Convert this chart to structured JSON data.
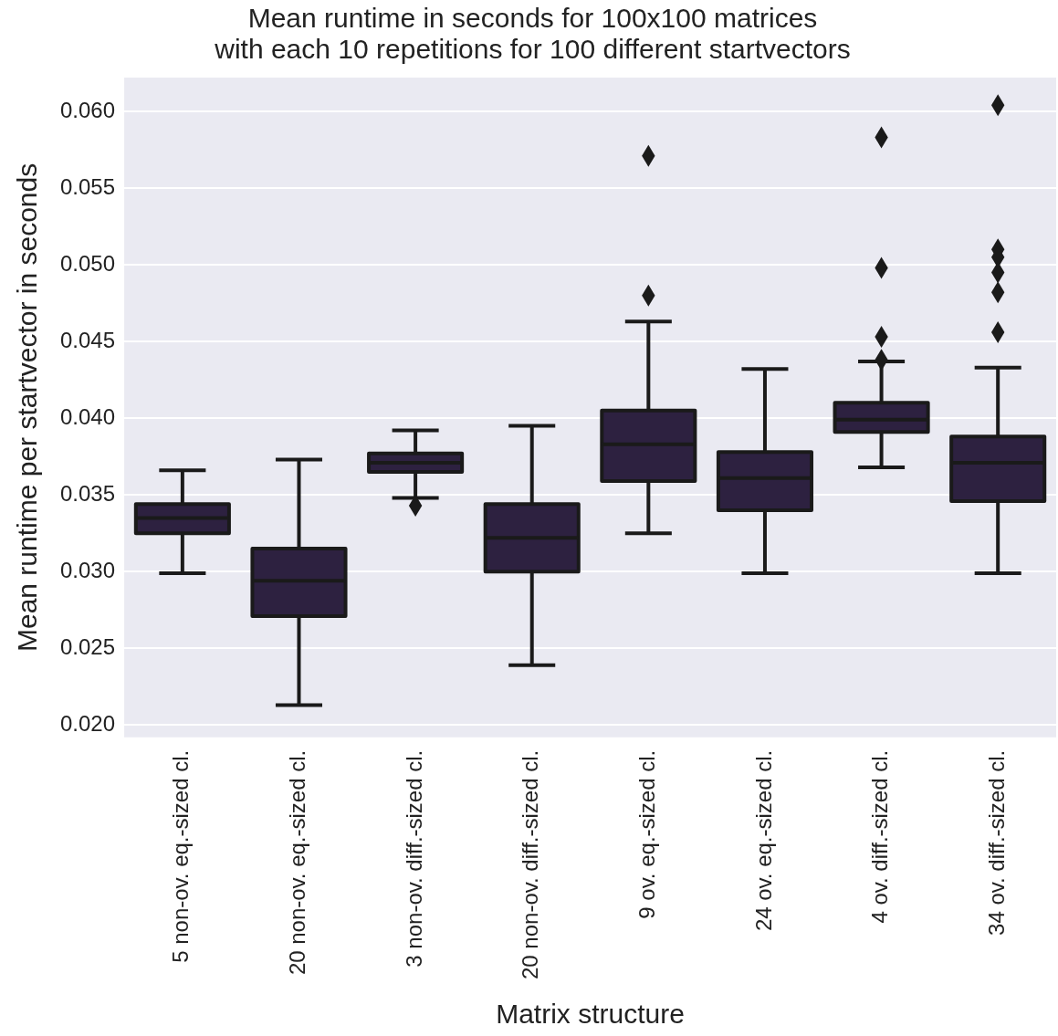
{
  "chart_data": {
    "type": "box",
    "title": "Mean runtime in seconds for 100x100 matrices\nwith each 10 repetitions for 100 different startvectors",
    "xlabel": "Matrix structure",
    "ylabel": "Mean runtime per startvector in seconds",
    "categories": [
      "5 non-ov. eq.-sized cl.",
      "20 non-ov. eq.-sized cl.",
      "3 non-ov. diff.-sized cl.",
      "20 non-ov. diff.-sized cl.",
      "9 ov. eq.-sized cl.",
      "24 ov. eq.-sized cl.",
      "4 ov. diff.-sized cl.",
      "34 ov. diff.-sized cl."
    ],
    "color": "#2d2140",
    "boxes": [
      {
        "low": 0.0299,
        "q1": 0.0325,
        "median": 0.0335,
        "q3": 0.0344,
        "high": 0.0366
      },
      {
        "low": 0.0213,
        "q1": 0.0271,
        "median": 0.0294,
        "q3": 0.0315,
        "high": 0.0373
      },
      {
        "low": 0.0348,
        "q1": 0.0365,
        "median": 0.0371,
        "q3": 0.0377,
        "high": 0.0392,
        "outliers": [
          0.0343
        ]
      },
      {
        "low": 0.0239,
        "q1": 0.03,
        "median": 0.0322,
        "q3": 0.0344,
        "high": 0.0395
      },
      {
        "low": 0.0325,
        "q1": 0.0359,
        "median": 0.0383,
        "q3": 0.0405,
        "high": 0.0463,
        "outliers": [
          0.0571,
          0.048
        ]
      },
      {
        "low": 0.0299,
        "q1": 0.034,
        "median": 0.0361,
        "q3": 0.0378,
        "high": 0.0432
      },
      {
        "low": 0.0368,
        "q1": 0.0391,
        "median": 0.0399,
        "q3": 0.041,
        "high": 0.0437,
        "outliers": [
          0.0583,
          0.0498,
          0.0453,
          0.0438
        ]
      },
      {
        "low": 0.0299,
        "q1": 0.0346,
        "median": 0.0371,
        "q3": 0.0388,
        "high": 0.0433,
        "outliers": [
          0.0604,
          0.051,
          0.0505,
          0.0495,
          0.0482,
          0.0456
        ]
      }
    ],
    "ylim": [
      0.0192,
      0.0622
    ],
    "yticks": [
      {
        "value": 0.02,
        "label": "0.020"
      },
      {
        "value": 0.025,
        "label": "0.025"
      },
      {
        "value": 0.03,
        "label": "0.030"
      },
      {
        "value": 0.035,
        "label": "0.035"
      },
      {
        "value": 0.04,
        "label": "0.040"
      },
      {
        "value": 0.045,
        "label": "0.045"
      },
      {
        "value": 0.05,
        "label": "0.050"
      },
      {
        "value": 0.055,
        "label": "0.055"
      },
      {
        "value": 0.06,
        "label": "0.060"
      }
    ],
    "grid": "y",
    "legend": false,
    "marker": "diamond"
  }
}
